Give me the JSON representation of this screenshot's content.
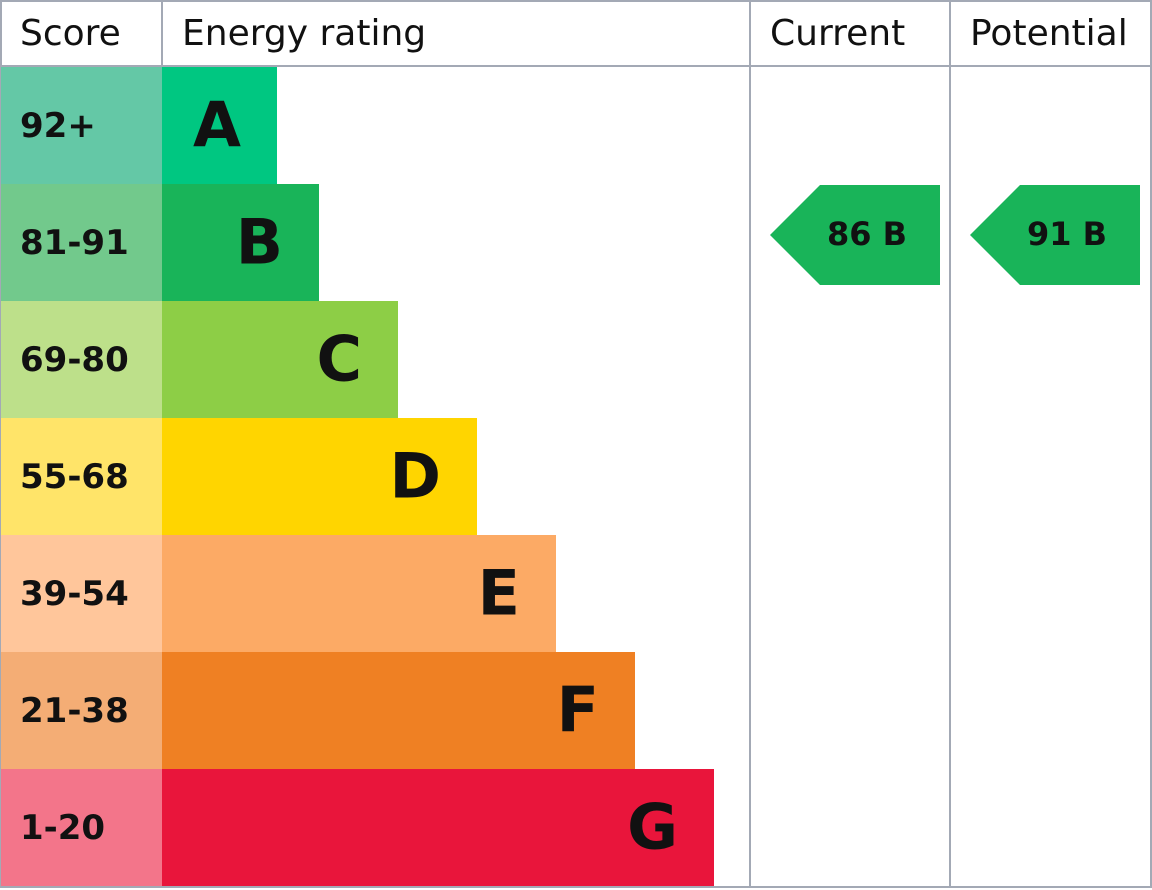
{
  "header": {
    "score": "Score",
    "energy_rating": "Energy rating",
    "current": "Current",
    "potential": "Potential"
  },
  "bands": [
    {
      "score": "92+",
      "letter": "A",
      "score_color": "#64c8a6",
      "color": "#00c781"
    },
    {
      "score": "81-91",
      "letter": "B",
      "score_color": "#72c98c",
      "color": "#19b459"
    },
    {
      "score": "69-80",
      "letter": "C",
      "score_color": "#bde08a",
      "color": "#8dce46"
    },
    {
      "score": "55-68",
      "letter": "D",
      "score_color": "#ffe469",
      "color": "#ffd500"
    },
    {
      "score": "39-54",
      "letter": "E",
      "score_color": "#ffc69b",
      "color": "#fcaa65"
    },
    {
      "score": "21-38",
      "letter": "F",
      "score_color": "#f4ad75",
      "color": "#ef8023"
    },
    {
      "score": "1-20",
      "letter": "G",
      "score_color": "#f3758a",
      "color": "#e9153b"
    }
  ],
  "current": {
    "label": "86 B",
    "band": "B"
  },
  "potential": {
    "label": "91 B",
    "band": "B"
  }
}
